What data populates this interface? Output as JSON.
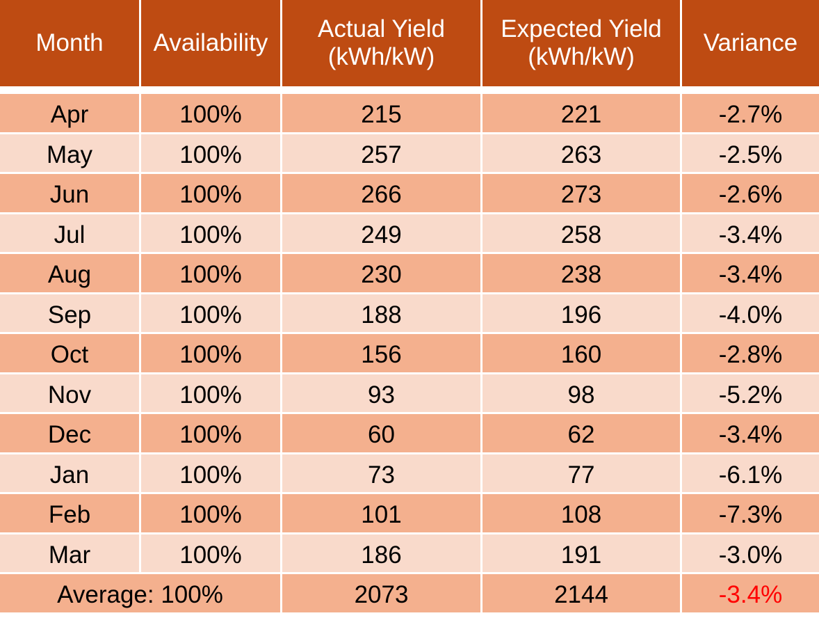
{
  "table": {
    "header": [
      [
        "Month"
      ],
      [
        "Availability"
      ],
      [
        "Actual Yield",
        "(kWh/kW)"
      ],
      [
        "Expected Yield",
        "(kWh/kW)"
      ],
      [
        "Variance"
      ]
    ],
    "rows": [
      [
        "Apr",
        "100%",
        "215",
        "221",
        "-2.7%"
      ],
      [
        "May",
        "100%",
        "257",
        "263",
        "-2.5%"
      ],
      [
        "Jun",
        "100%",
        "266",
        "273",
        "-2.6%"
      ],
      [
        "Jul",
        "100%",
        "249",
        "258",
        "-3.4%"
      ],
      [
        "Aug",
        "100%",
        "230",
        "238",
        "-3.4%"
      ],
      [
        "Sep",
        "100%",
        "188",
        "196",
        "-4.0%"
      ],
      [
        "Oct",
        "100%",
        "156",
        "160",
        "-2.8%"
      ],
      [
        "Nov",
        "100%",
        "93",
        "98",
        "-5.2%"
      ],
      [
        "Dec",
        "100%",
        "60",
        "62",
        "-3.4%"
      ],
      [
        "Jan",
        "100%",
        "73",
        "77",
        "-6.1%"
      ],
      [
        "Feb",
        "100%",
        "101",
        "108",
        "-7.3%"
      ],
      [
        "Mar",
        "100%",
        "186",
        "191",
        "-3.0%"
      ]
    ],
    "footer": [
      "Average: 100%",
      "2073",
      "2144",
      "-3.4%"
    ]
  }
}
